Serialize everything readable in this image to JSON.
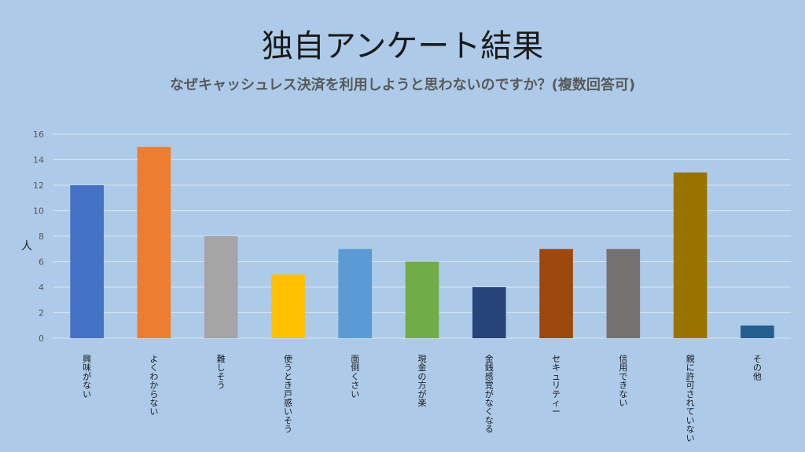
{
  "slide": {
    "title": "独自アンケート結果"
  },
  "chart_data": {
    "type": "bar",
    "title": "なぜキャッシュレス決済を利用しようと思わないのですか？(複数回答可)",
    "xlabel": "",
    "ylabel": "人",
    "ylim": [
      0,
      16
    ],
    "yticks": [
      0,
      2,
      4,
      6,
      8,
      10,
      12,
      14,
      16
    ],
    "grid": true,
    "categories": [
      "興味がない",
      "よくわからない",
      "難しそう",
      "使うとき戸惑いそう",
      "面倒くさい",
      "現金の方が楽",
      "金銭感覚がなくなる",
      "セキュリティー",
      "信用できない",
      "親に許可されていない",
      "その他"
    ],
    "values": [
      12,
      15,
      8,
      5,
      7,
      6,
      4,
      7,
      7,
      13,
      1
    ],
    "colors": [
      "#4472c4",
      "#ed7d31",
      "#a5a5a5",
      "#ffc000",
      "#5b9bd5",
      "#70ad47",
      "#264478",
      "#9e480e",
      "#767171",
      "#997300",
      "#255e91"
    ]
  }
}
